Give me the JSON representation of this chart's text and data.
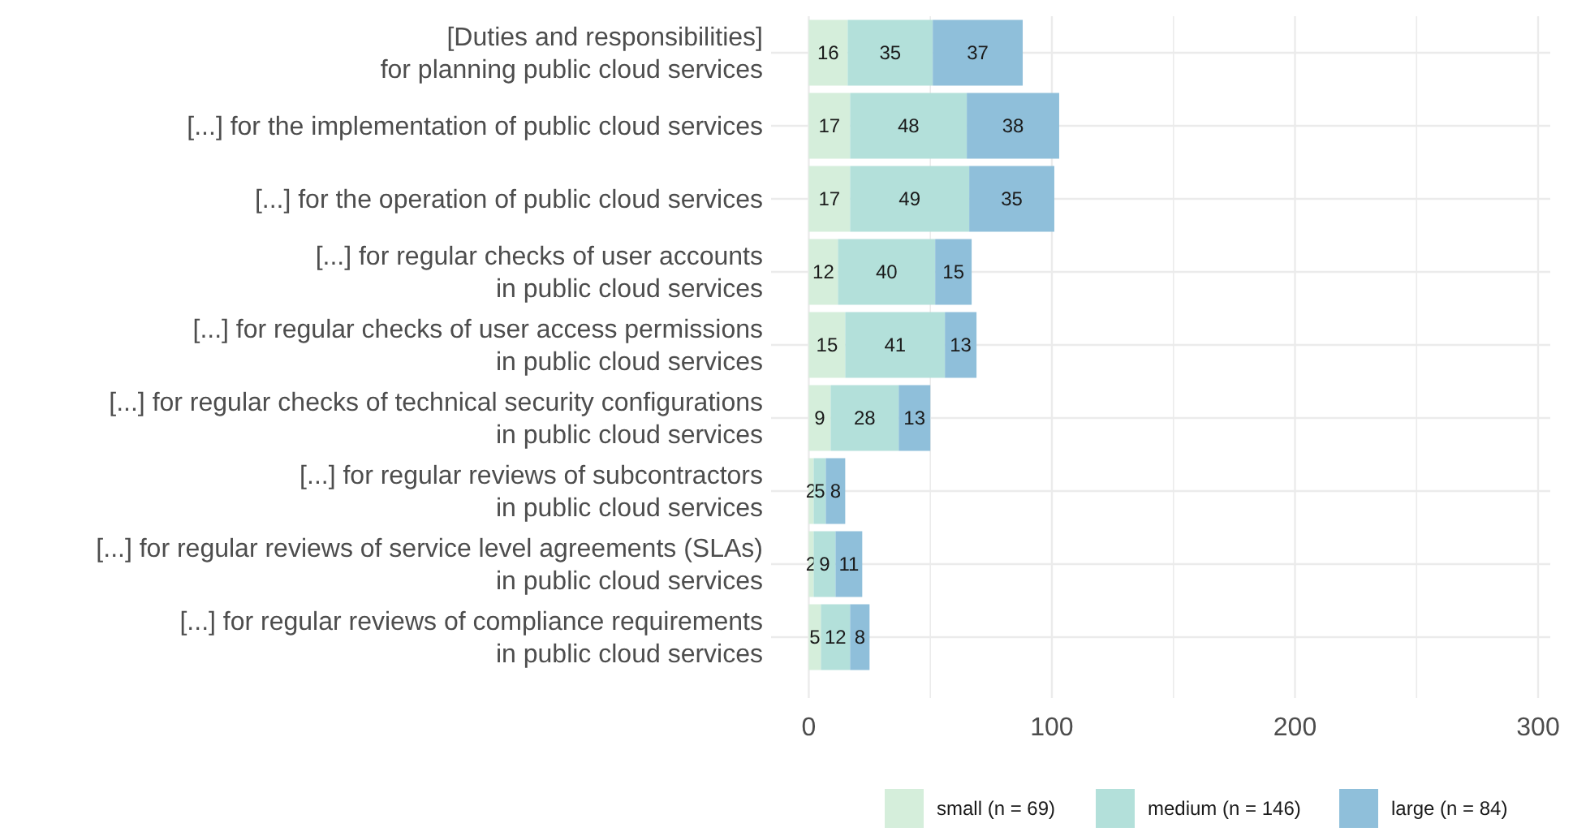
{
  "chart_data": {
    "type": "bar",
    "orientation": "horizontal",
    "stacked": true,
    "categories": [
      "[Duties and responsibilities]\nfor planning public cloud services",
      "[...] for the implementation of public cloud services",
      "[...] for the operation of public cloud services",
      "[...] for regular checks of user accounts\nin public cloud services",
      "[...] for regular checks of user access permissions\nin public cloud services",
      "[...] for regular checks of technical security configurations\nin public cloud services",
      "[...] for regular reviews of subcontractors\nin public cloud services",
      "[...] for regular reviews of service level agreements (SLAs)\nin public cloud services",
      "[...] for regular reviews of compliance requirements\nin public cloud services"
    ],
    "series": [
      {
        "name": "small (n = 69)",
        "color": "#d5eedb",
        "values": [
          16,
          17,
          17,
          12,
          15,
          9,
          2,
          2,
          5
        ]
      },
      {
        "name": "medium (n = 146)",
        "color": "#b3e0da",
        "values": [
          35,
          48,
          49,
          40,
          41,
          28,
          5,
          9,
          12
        ]
      },
      {
        "name": "large (n = 84)",
        "color": "#8fbfda",
        "values": [
          37,
          38,
          35,
          15,
          13,
          13,
          8,
          11,
          8
        ]
      }
    ],
    "xlim": [
      -15.5,
      305
    ],
    "xticks": [
      0,
      {
        "value": 50,
        "label": null
      },
      100,
      {
        "value": 150,
        "label": null
      },
      200,
      {
        "value": 250,
        "label": null
      },
      300
    ],
    "grid": true,
    "legend": "bottom",
    "data_labels": true
  }
}
